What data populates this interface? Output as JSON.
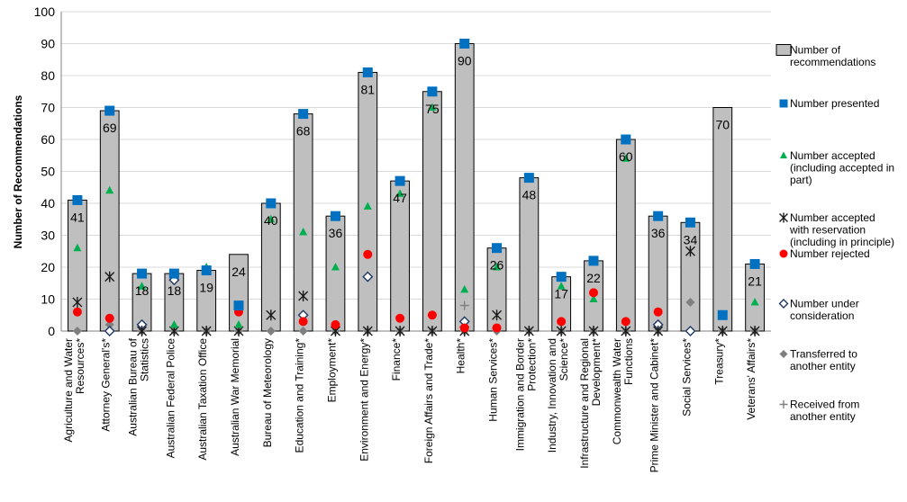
{
  "chart_data": {
    "type": "bar",
    "title": "",
    "xlabel": "",
    "ylabel": "Number of Recommendations",
    "ylim": [
      0,
      100
    ],
    "yticks": [
      0,
      10,
      20,
      30,
      40,
      50,
      60,
      70,
      80,
      90,
      100
    ],
    "grid": true,
    "legend_position": "right",
    "categories": [
      [
        "Agriculture and Water",
        "Resources*"
      ],
      [
        "Attorney General's*"
      ],
      [
        "Australian Bureau of",
        "Statistics"
      ],
      [
        "Australian Federal Police"
      ],
      [
        "Australian Taxation Office"
      ],
      [
        "Australian War Memorial"
      ],
      [
        "Bureau of Meteorology"
      ],
      [
        "Education and Training*"
      ],
      [
        "Employment*"
      ],
      [
        "Environment and Energy*"
      ],
      [
        "Finance*"
      ],
      [
        "Foreign Affairs and Trade*"
      ],
      [
        "Health*"
      ],
      [
        "Human Services*"
      ],
      [
        "Immigration and Border",
        "Protection*"
      ],
      [
        "Industry, Innovation and",
        "Science*"
      ],
      [
        "Infrastructure and Regional",
        "Development*"
      ],
      [
        "Commonwealth Water",
        "Functions"
      ],
      [
        "Prime Minister and Cabinet*"
      ],
      [
        "Social Services*"
      ],
      [
        "Treasury*"
      ],
      [
        "Veterans' Affairs*"
      ]
    ],
    "series": [
      {
        "name": [
          "Number of",
          "recommendations"
        ],
        "kind": "bar",
        "color": "#bfbfbf",
        "values": [
          41,
          69,
          18,
          18,
          19,
          24,
          40,
          68,
          36,
          81,
          47,
          75,
          90,
          26,
          48,
          17,
          22,
          60,
          36,
          34,
          70,
          21
        ]
      },
      {
        "name": [
          "Number presented"
        ],
        "kind": "square",
        "color": "#0070c0",
        "values": [
          41,
          69,
          18,
          18,
          19,
          8,
          40,
          68,
          36,
          81,
          47,
          75,
          90,
          26,
          48,
          17,
          22,
          60,
          36,
          34,
          5,
          21
        ]
      },
      {
        "name": [
          "Number accepted",
          "(including accepted in",
          "part)"
        ],
        "kind": "triangle",
        "color": "#00b050",
        "values": [
          26,
          44,
          14,
          2,
          20,
          2,
          35,
          31,
          20,
          39,
          43,
          70,
          13,
          20,
          48,
          14,
          10,
          54,
          null,
          null,
          null,
          9
        ]
      },
      {
        "name": [
          "Number accepted",
          "with reservation",
          "(including in principle)"
        ],
        "kind": "star",
        "color": "#1a1a1a",
        "values": [
          9,
          17,
          0,
          0,
          0,
          0,
          5,
          11,
          0,
          0,
          0,
          0,
          0,
          5,
          0,
          0,
          0,
          0,
          0,
          25,
          0,
          0
        ]
      },
      {
        "name": [
          "Number rejected"
        ],
        "kind": "circle",
        "color": "#ff0000",
        "values": [
          6,
          4,
          null,
          null,
          null,
          6,
          null,
          3,
          2,
          24,
          4,
          5,
          1,
          1,
          null,
          3,
          12,
          3,
          6,
          null,
          null,
          null
        ]
      },
      {
        "name": [
          "Number under",
          "consideration"
        ],
        "kind": "diamond-open",
        "color": "#1f3864",
        "values": [
          null,
          0,
          2,
          16,
          null,
          null,
          null,
          5,
          null,
          17,
          null,
          null,
          3,
          null,
          null,
          null,
          null,
          null,
          2,
          0,
          null,
          null
        ]
      },
      {
        "name": [
          "Transferred to",
          "another entity"
        ],
        "kind": "diamond",
        "color": "#7f7f7f",
        "values": [
          0,
          2,
          0,
          0,
          0,
          0,
          0,
          0,
          0,
          0,
          0,
          0,
          0,
          0,
          0,
          0,
          0,
          0,
          0,
          9,
          0,
          0
        ]
      },
      {
        "name": [
          "Received from",
          "another entity"
        ],
        "kind": "plus",
        "color": "#7f7f7f",
        "values": [
          null,
          null,
          null,
          null,
          null,
          null,
          null,
          null,
          null,
          null,
          null,
          null,
          8,
          null,
          null,
          null,
          null,
          null,
          null,
          null,
          null,
          null
        ]
      }
    ]
  }
}
